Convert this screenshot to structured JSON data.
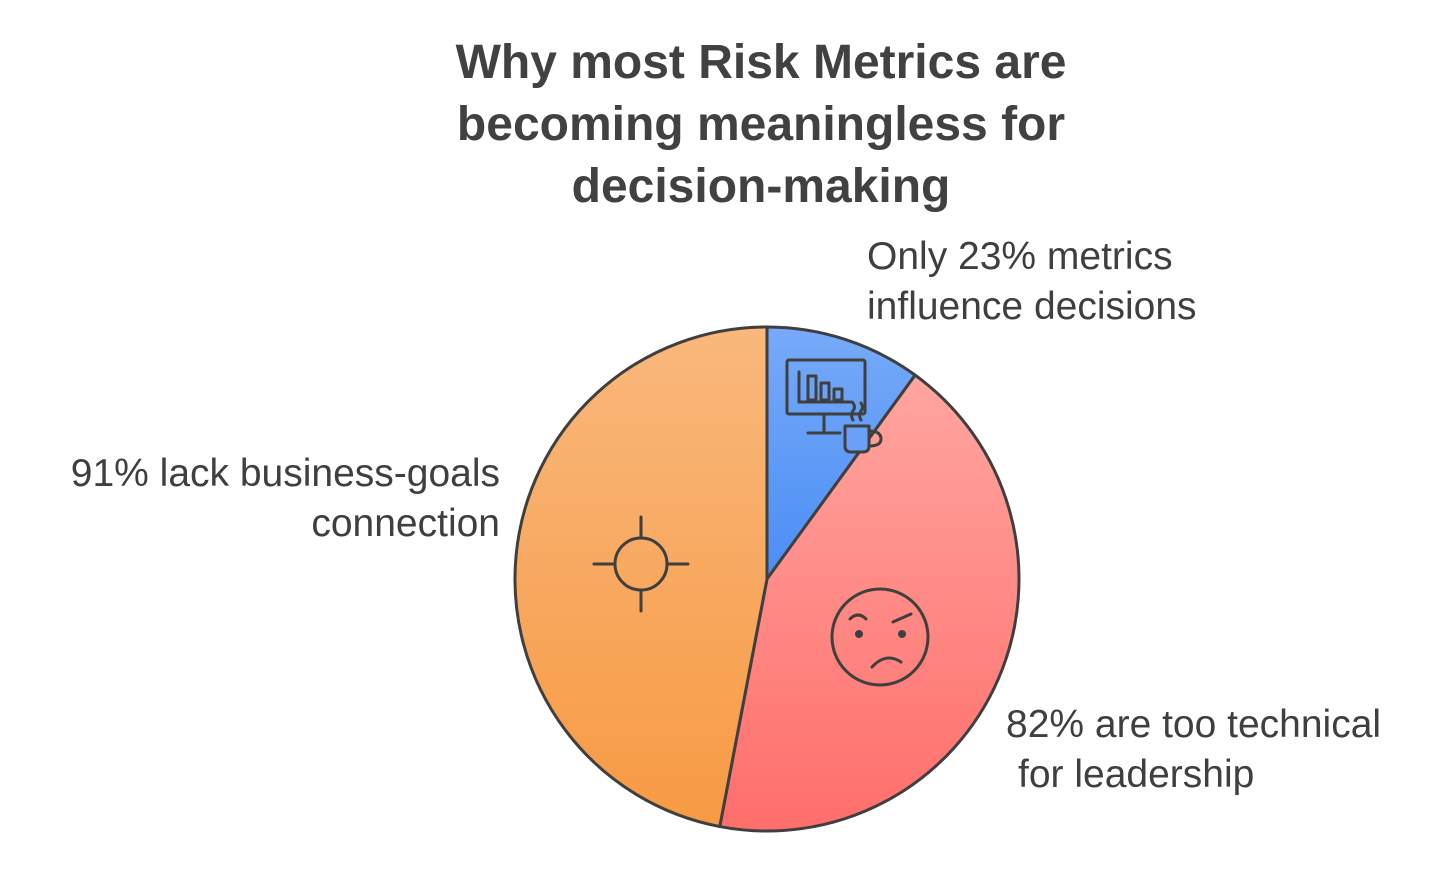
{
  "chart_data": {
    "type": "pie",
    "title_lines": [
      "Why most Risk Metrics are",
      "becoming meaningless for",
      "decision-making"
    ],
    "slices": [
      {
        "name": "influence",
        "label_lines": [
          "Only 23% metrics",
          "influence decisions"
        ],
        "share": 0.1,
        "start_color": "#77AAF9",
        "end_color": "#4A8EF5",
        "icon": "monitor-coffee-icon"
      },
      {
        "name": "technical",
        "label_lines": [
          "82% are too technical",
          "for leadership"
        ],
        "share": 0.43,
        "start_color": "#FFA5A0",
        "end_color": "#FF6E6A",
        "icon": "frowning-face-icon"
      },
      {
        "name": "business",
        "label_lines": [
          "91% lack business-goals",
          "connection"
        ],
        "share": 0.47,
        "start_color": "#F9B87C",
        "end_color": "#F79A43",
        "icon": "crosshair-icon"
      }
    ],
    "outline_color": "#3f3f3f"
  }
}
